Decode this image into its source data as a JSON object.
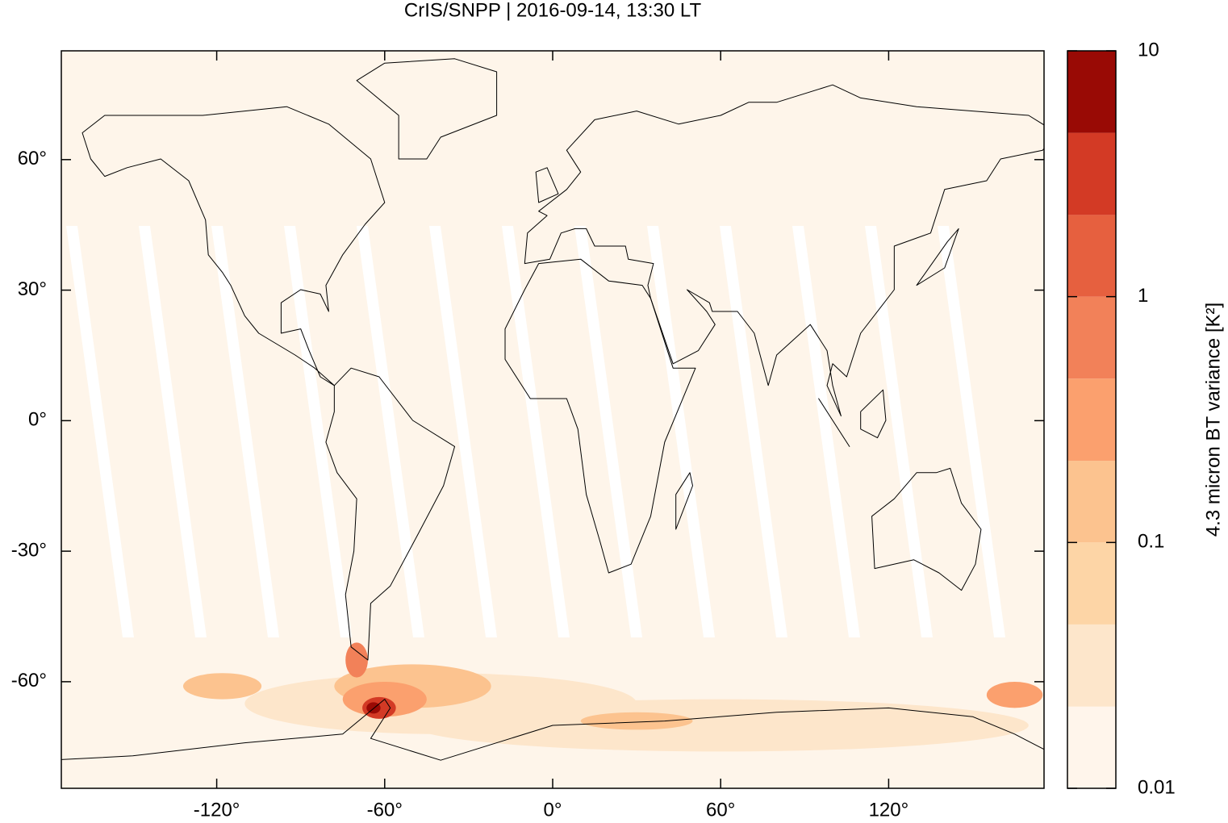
{
  "chart_data": {
    "type": "map",
    "title": "CrIS/SNPP | 2016-09-14, 13:30 LT",
    "xlim": [
      -175.5,
      175.5
    ],
    "ylim": [
      -84.5,
      85
    ],
    "xticks": [
      {
        "value": -120,
        "label": "-120°"
      },
      {
        "value": -60,
        "label": "-60°"
      },
      {
        "value": 0,
        "label": "0°"
      },
      {
        "value": 60,
        "label": "60°"
      },
      {
        "value": 120,
        "label": "120°"
      }
    ],
    "yticks": [
      {
        "value": -60,
        "label": "-60°"
      },
      {
        "value": -30,
        "label": "-30°"
      },
      {
        "value": 0,
        "label": "0°"
      },
      {
        "value": 30,
        "label": "30°"
      },
      {
        "value": 60,
        "label": "60°"
      }
    ],
    "colorbar": {
      "label": "4.3 micron BT variance [K²]",
      "scale": "log",
      "lim": [
        0.01,
        10
      ],
      "ticks": [
        0.01,
        0.1,
        1,
        10
      ],
      "levels": [
        0.01,
        0.0215,
        0.0464,
        0.1,
        0.215,
        0.464,
        1,
        2.15,
        4.64,
        10
      ],
      "colors": [
        "#fff5eb",
        "#fde6cb",
        "#fdd5a6",
        "#fcc38f",
        "#fba06e",
        "#f28159",
        "#e6603f",
        "#d33a25",
        "#990a05"
      ]
    }
  }
}
